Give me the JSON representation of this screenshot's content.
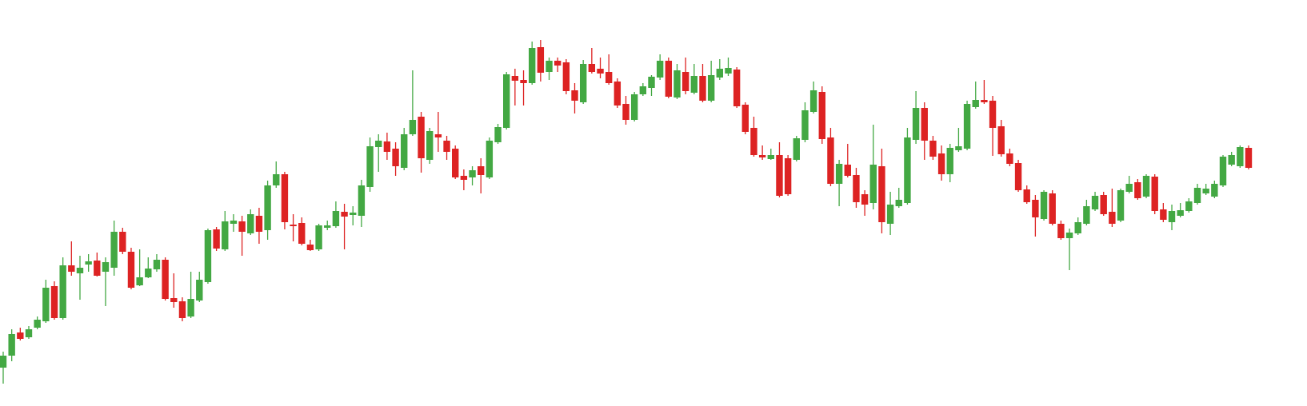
{
  "chart_data": {
    "type": "candlestick",
    "up_color": "#43a843",
    "down_color": "#dd2323",
    "ylim": [
      0,
      500
    ],
    "open": [
      40,
      55,
      84,
      78,
      90,
      98,
      142,
      102,
      168,
      158,
      169,
      174,
      160,
      165,
      210,
      185,
      143,
      153,
      163,
      175,
      127,
      123,
      104,
      124,
      147,
      213,
      188,
      220,
      223,
      208,
      230,
      212,
      268,
      282,
      219,
      221,
      194,
      188,
      215,
      217,
      235,
      231,
      230,
      266,
      316,
      323,
      314,
      290,
      332,
      354,
      300,
      332,
      324,
      314,
      280,
      278,
      292,
      278,
      322,
      340,
      405,
      400,
      396,
      441,
      410,
      424,
      422,
      387,
      372,
      420,
      414,
      410,
      398,
      370,
      350,
      382,
      390,
      403,
      424,
      378,
      410,
      384,
      405,
      374,
      403,
      408,
      413,
      369,
      340,
      306,
      301,
      306,
      302,
      300,
      325,
      360,
      385,
      328,
      270,
      294,
      281,
      257,
      246,
      292,
      220,
      242,
      246,
      325,
      365,
      324,
      308,
      282,
      312,
      314,
      366,
      375,
      374,
      342,
      308,
      296,
      263,
      250,
      226,
      258,
      220,
      202,
      208,
      220,
      238,
      256,
      235,
      224,
      260,
      272,
      254,
      279,
      238,
      222,
      230,
      236,
      246,
      258,
      254,
      268,
      294,
      292,
      315
    ],
    "high": [
      60,
      88,
      90,
      92,
      104,
      150,
      148,
      178,
      198,
      180,
      182,
      184,
      178,
      224,
      215,
      190,
      188,
      178,
      182,
      178,
      158,
      128,
      160,
      160,
      214,
      216,
      236,
      232,
      230,
      238,
      240,
      274,
      298,
      285,
      232,
      228,
      200,
      220,
      224,
      248,
      245,
      242,
      275,
      328,
      332,
      334,
      322,
      340,
      412,
      360,
      340,
      360,
      330,
      318,
      288,
      292,
      302,
      328,
      345,
      410,
      414,
      412,
      448,
      450,
      428,
      428,
      426,
      396,
      425,
      440,
      428,
      432,
      402,
      380,
      385,
      396,
      406,
      432,
      428,
      420,
      428,
      420,
      420,
      424,
      426,
      428,
      416,
      372,
      354,
      318,
      314,
      322,
      306,
      330,
      372,
      398,
      392,
      340,
      300,
      320,
      290,
      262,
      344,
      314,
      260,
      265,
      340,
      386,
      372,
      330,
      318,
      320,
      340,
      374,
      398,
      400,
      380,
      350,
      314,
      300,
      268,
      256,
      262,
      262,
      224,
      214,
      228,
      250,
      260,
      260,
      264,
      264,
      280,
      276,
      282,
      282,
      246,
      244,
      246,
      252,
      270,
      270,
      274,
      306,
      310,
      318,
      318
    ],
    "low": [
      20,
      48,
      74,
      76,
      88,
      96,
      100,
      100,
      155,
      125,
      160,
      154,
      117,
      155,
      182,
      138,
      142,
      152,
      160,
      124,
      115,
      98,
      102,
      122,
      145,
      186,
      186,
      210,
      180,
      206,
      195,
      200,
      265,
      213,
      198,
      193,
      186,
      186,
      212,
      215,
      188,
      218,
      216,
      260,
      285,
      300,
      280,
      287,
      330,
      284,
      295,
      310,
      300,
      276,
      262,
      268,
      258,
      276,
      320,
      338,
      368,
      368,
      394,
      398,
      400,
      410,
      382,
      358,
      370,
      408,
      402,
      394,
      365,
      344,
      348,
      380,
      380,
      400,
      377,
      376,
      382,
      382,
      372,
      372,
      400,
      405,
      365,
      332,
      304,
      300,
      300,
      253,
      255,
      298,
      322,
      358,
      320,
      267,
      242,
      278,
      240,
      230,
      238,
      208,
      206,
      240,
      244,
      320,
      300,
      300,
      274,
      272,
      310,
      312,
      364,
      370,
      305,
      304,
      292,
      260,
      245,
      204,
      224,
      218,
      200,
      162,
      206,
      218,
      236,
      230,
      216,
      222,
      258,
      250,
      252,
      232,
      222,
      212,
      228,
      234,
      244,
      256,
      252,
      266,
      292,
      290,
      288
    ],
    "close": [
      55,
      82,
      76,
      88,
      100,
      140,
      102,
      168,
      160,
      165,
      173,
      155,
      172,
      210,
      185,
      140,
      153,
      164,
      175,
      126,
      122,
      102,
      126,
      150,
      212,
      189,
      223,
      224,
      210,
      232,
      210,
      268,
      282,
      222,
      217,
      195,
      187,
      218,
      218,
      236,
      229,
      234,
      268,
      317,
      324,
      310,
      292,
      332,
      350,
      302,
      336,
      328,
      310,
      278,
      275,
      287,
      281,
      324,
      341,
      407,
      399,
      396,
      440,
      409,
      424,
      418,
      386,
      374,
      420,
      410,
      408,
      396,
      368,
      350,
      382,
      392,
      404,
      424,
      379,
      412,
      386,
      405,
      374,
      406,
      414,
      415,
      367,
      335,
      306,
      303,
      306,
      255,
      257,
      327,
      362,
      387,
      326,
      270,
      295,
      280,
      247,
      244,
      294,
      222,
      244,
      250,
      328,
      365,
      324,
      304,
      282,
      315,
      317,
      370,
      375,
      372,
      340,
      307,
      295,
      262,
      247,
      228,
      260,
      220,
      202,
      209,
      222,
      242,
      255,
      232,
      220,
      262,
      270,
      252,
      280,
      236,
      225,
      236,
      237,
      248,
      265,
      264,
      270,
      304,
      306,
      316,
      290
    ]
  }
}
